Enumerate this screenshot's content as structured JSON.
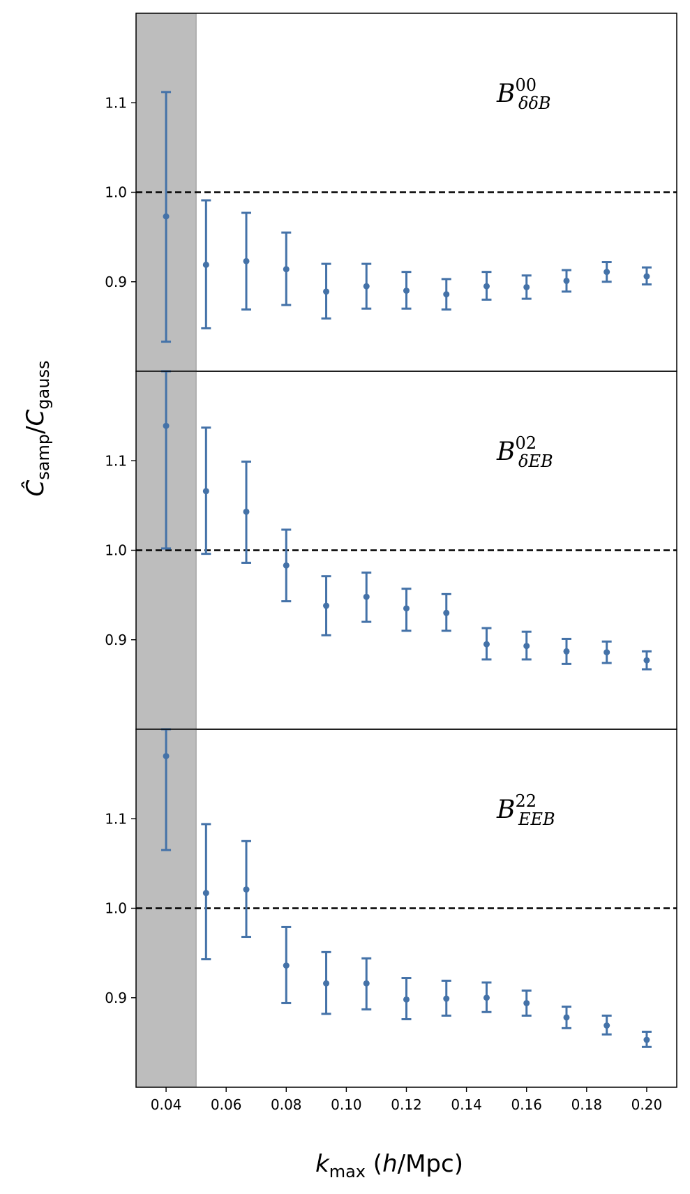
{
  "chart_data": {
    "type": "scatter",
    "subtype": "errorbar",
    "ylabel": "Ĉsamp/Cgauss",
    "ylabel_parts": {
      "hat": "Ĉ",
      "c": "C",
      "sub1": "samp",
      "slash": "/",
      "sub2": "gauss"
    },
    "xlabel": "kmax (h/Mpc)",
    "xlabel_parts": {
      "k": "k",
      "sub": "max",
      "open": " (",
      "h": "h",
      "unit": "/Mpc)"
    },
    "xlim": [
      0.03,
      0.21
    ],
    "x_ticks": [
      0.04,
      0.06,
      0.08,
      0.1,
      0.12,
      0.14,
      0.16,
      0.18,
      0.2
    ],
    "x_tick_labels": [
      "0.04",
      "0.06",
      "0.08",
      "0.10",
      "0.12",
      "0.14",
      "0.16",
      "0.18",
      "0.20"
    ],
    "shaded_region": {
      "x_from": 0.03,
      "x_to": 0.05,
      "color": "#bdbdbd"
    },
    "reference_line": 1.0,
    "marker_color": "#4472a8",
    "x": [
      0.04,
      0.0533,
      0.0667,
      0.08,
      0.0933,
      0.1067,
      0.12,
      0.1333,
      0.1467,
      0.16,
      0.1733,
      0.1867,
      0.2
    ],
    "panels": [
      {
        "label": {
          "base": "B",
          "sup": "00",
          "sub": "δδB"
        },
        "ylim": [
          0.8,
          1.2
        ],
        "y_ticks": [
          0.9,
          1.0,
          1.1
        ],
        "y_tick_labels": [
          "0.9",
          "1.0",
          "1.1"
        ],
        "values": [
          0.973,
          0.919,
          0.923,
          0.914,
          0.889,
          0.895,
          0.89,
          0.886,
          0.895,
          0.894,
          0.901,
          0.911,
          0.906
        ],
        "err_low": [
          0.833,
          0.848,
          0.869,
          0.874,
          0.859,
          0.87,
          0.87,
          0.869,
          0.88,
          0.881,
          0.889,
          0.9,
          0.897
        ],
        "err_high": [
          1.112,
          0.991,
          0.977,
          0.955,
          0.92,
          0.92,
          0.911,
          0.903,
          0.911,
          0.907,
          0.913,
          0.922,
          0.916
        ]
      },
      {
        "label": {
          "base": "B",
          "sup": "02",
          "sub": "δEB"
        },
        "ylim": [
          0.8,
          1.2
        ],
        "y_ticks": [
          0.9,
          1.0,
          1.1
        ],
        "y_tick_labels": [
          "0.9",
          "1.0",
          "1.1"
        ],
        "values": [
          1.139,
          1.066,
          1.043,
          0.983,
          0.938,
          0.948,
          0.935,
          0.93,
          0.895,
          0.893,
          0.887,
          0.886,
          0.877
        ],
        "err_low": [
          1.002,
          0.996,
          0.986,
          0.943,
          0.905,
          0.92,
          0.91,
          0.91,
          0.878,
          0.878,
          0.873,
          0.874,
          0.867
        ],
        "err_high": [
          1.2,
          1.137,
          1.099,
          1.023,
          0.971,
          0.975,
          0.957,
          0.951,
          0.913,
          0.909,
          0.901,
          0.898,
          0.887
        ]
      },
      {
        "label": {
          "base": "B",
          "sup": "22",
          "sub": "EEB"
        },
        "ylim": [
          0.8,
          1.2
        ],
        "y_ticks": [
          0.9,
          1.0,
          1.1
        ],
        "y_tick_labels": [
          "0.9",
          "1.0",
          "1.1"
        ],
        "values": [
          1.17,
          1.017,
          1.021,
          0.936,
          0.916,
          0.916,
          0.898,
          0.899,
          0.9,
          0.894,
          0.878,
          0.869,
          0.853
        ],
        "err_low": [
          1.065,
          0.943,
          0.968,
          0.894,
          0.882,
          0.887,
          0.876,
          0.88,
          0.884,
          0.88,
          0.866,
          0.859,
          0.845
        ],
        "err_high": [
          1.2,
          1.094,
          1.075,
          0.979,
          0.951,
          0.944,
          0.922,
          0.919,
          0.917,
          0.908,
          0.89,
          0.88,
          0.862
        ]
      }
    ]
  }
}
